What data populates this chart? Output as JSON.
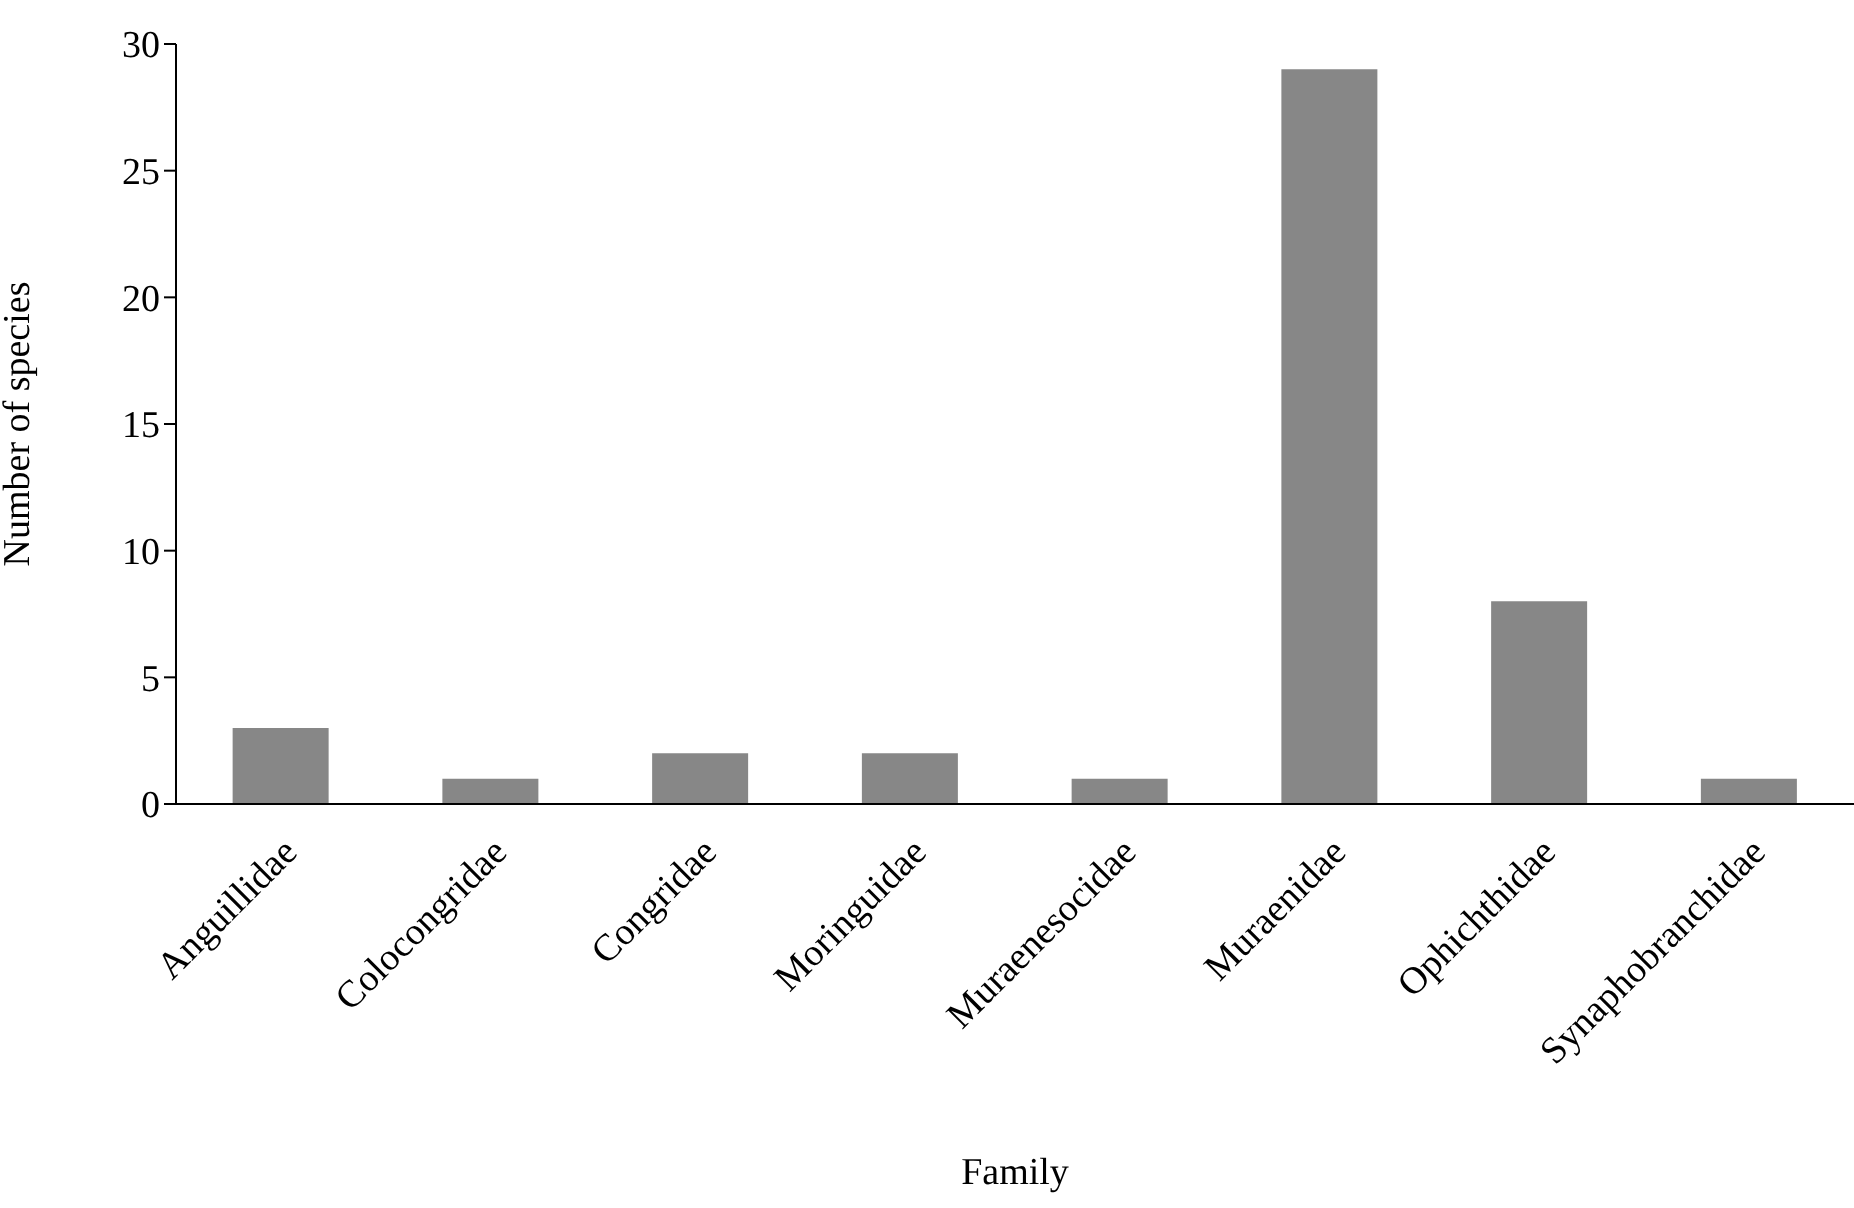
{
  "chart_data": {
    "type": "bar",
    "xlabel": "Family",
    "ylabel": "Number of species",
    "categories": [
      "Anguillidae",
      "Colocongridae",
      "Congridae",
      "Moringuidae",
      "Muraenesocidae",
      "Muraenidae",
      "Ophichthidae",
      "Synaphobranchidae"
    ],
    "values": [
      3,
      1,
      2,
      2,
      1,
      29,
      8,
      1
    ],
    "color": "#878787",
    "ylim": [
      0,
      30
    ],
    "yticks": [
      0,
      5,
      10,
      15,
      20,
      25,
      30
    ],
    "grid": false,
    "legend": false
  }
}
